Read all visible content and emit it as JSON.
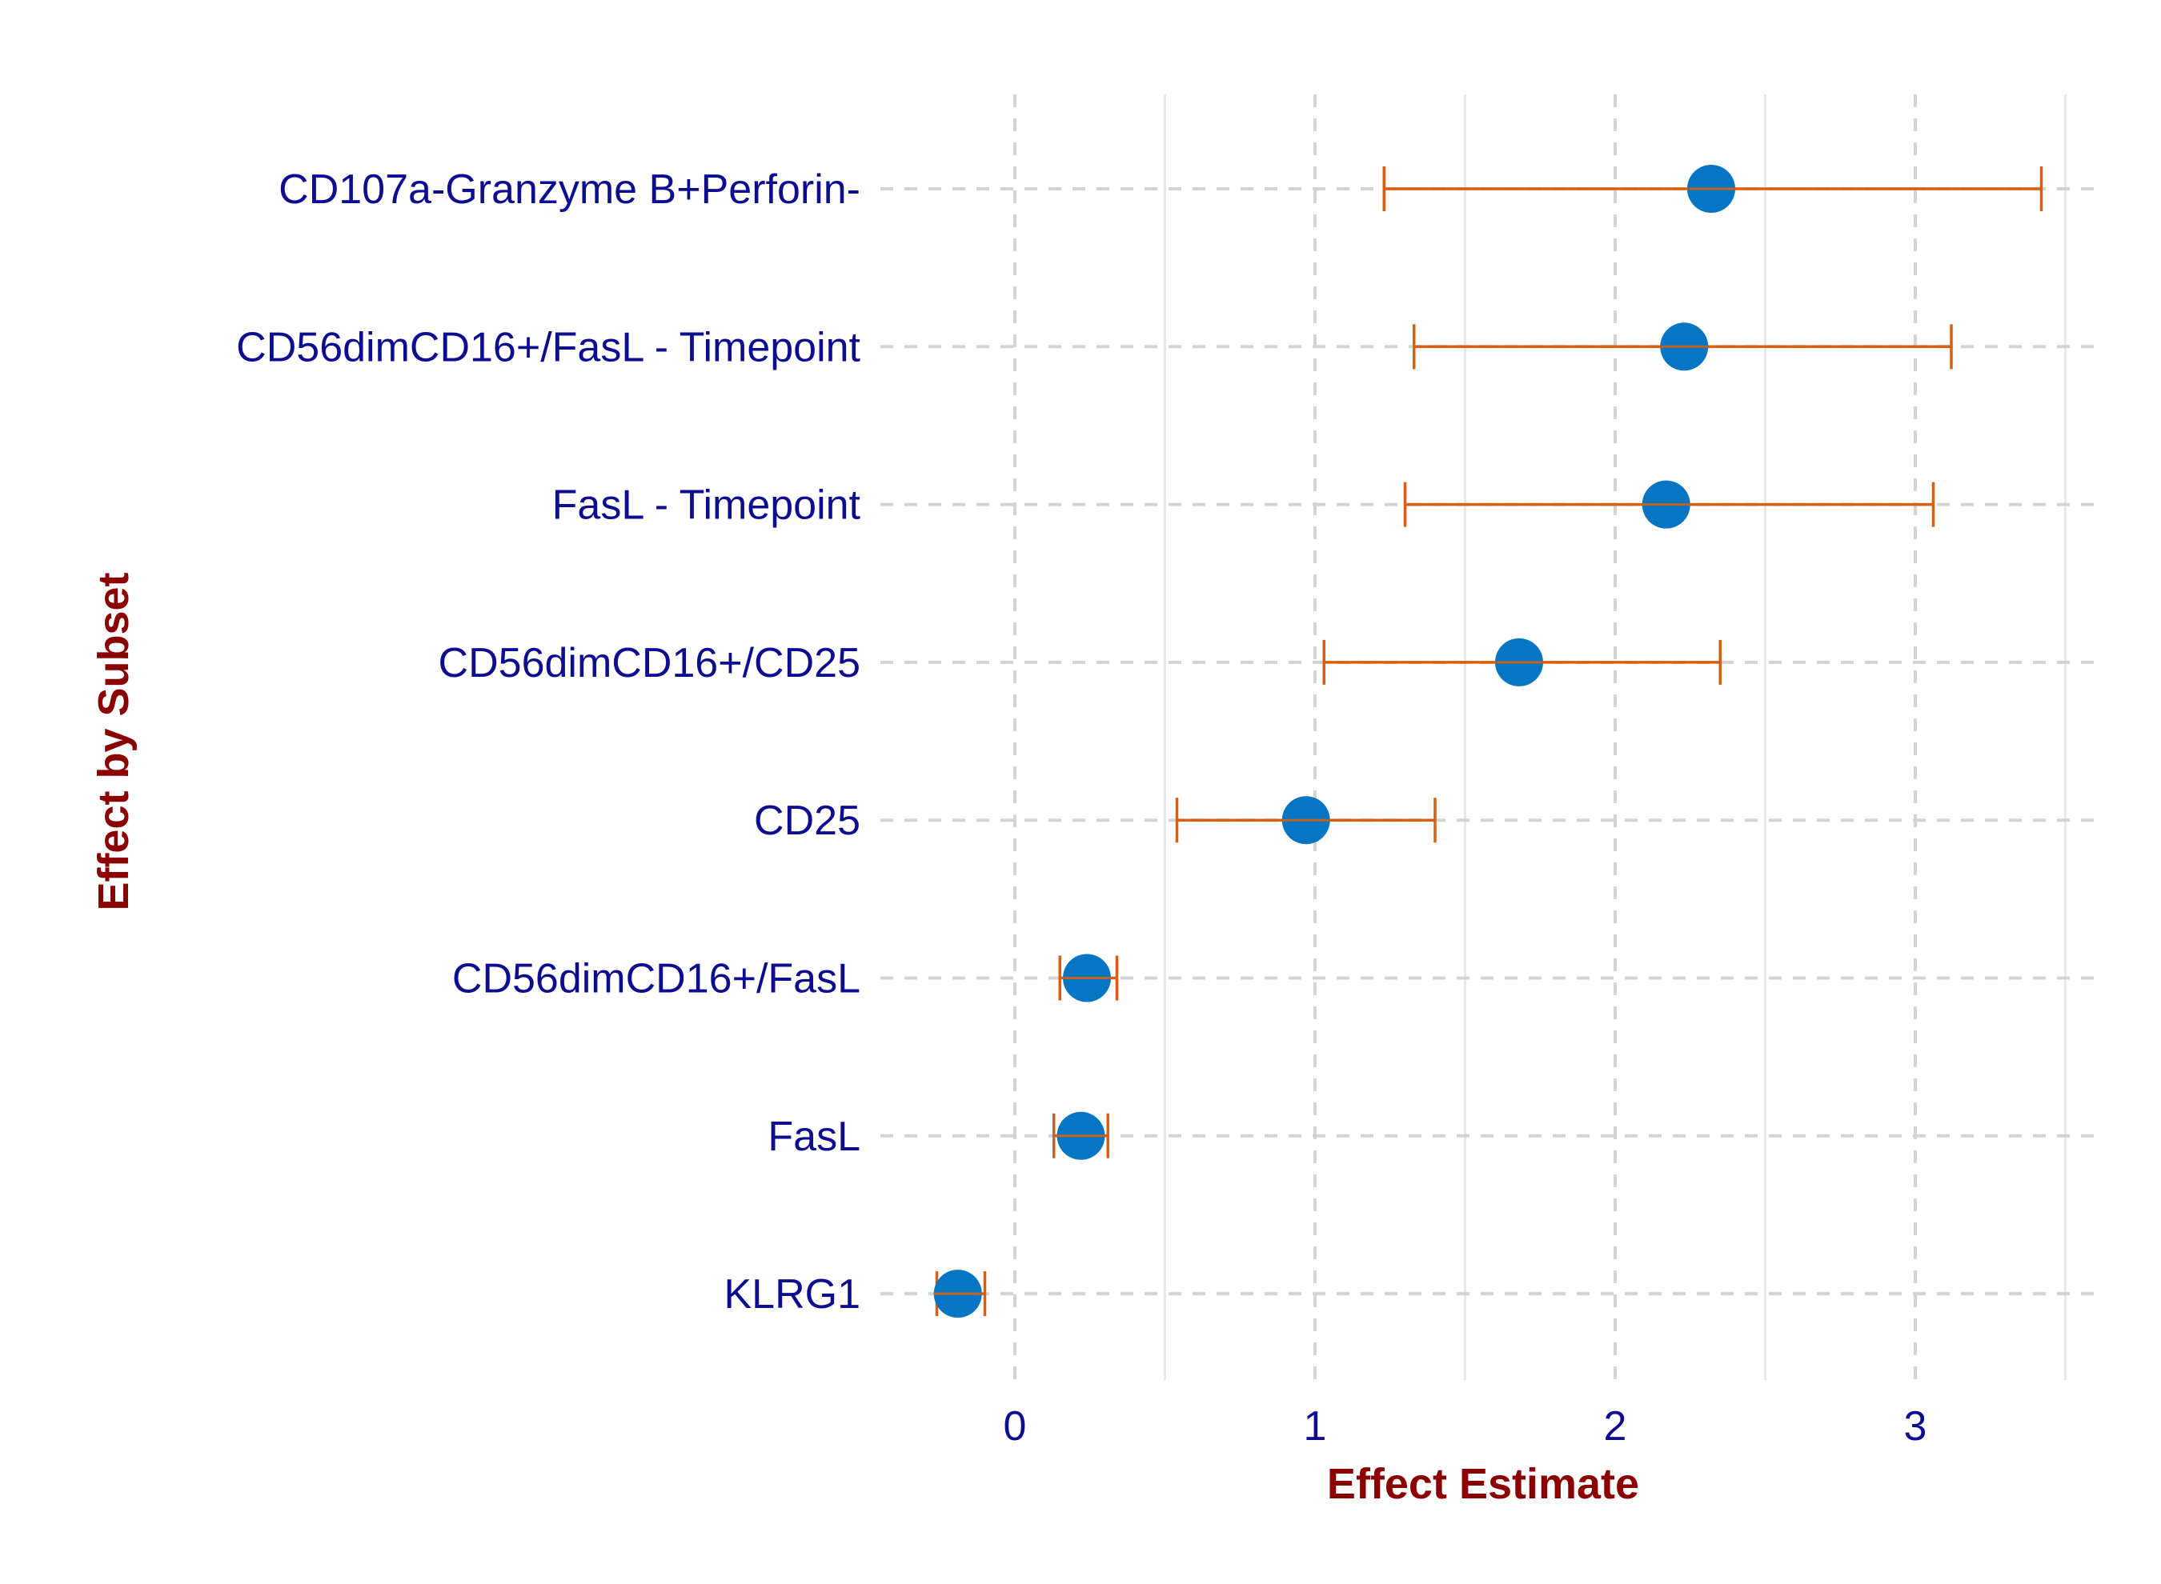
{
  "chart_data": {
    "type": "scatter",
    "title": "",
    "xlabel": "Effect Estimate",
    "ylabel": "Effect by Subset",
    "xlim": [
      -0.42,
      3.58
    ],
    "x_ticks": [
      0,
      1,
      2,
      3
    ],
    "x_minor_ticks": [
      0.5,
      1.5,
      2.5,
      3.5
    ],
    "grid": true,
    "legend": "none",
    "categories": [
      "CD107a-Granzyme B+Perforin-",
      "CD56dimCD16+/FasL - Timepoint",
      "FasL - Timepoint",
      "CD56dimCD16+/CD25",
      "CD25",
      "CD56dimCD16+/FasL",
      "FasL",
      "KLRG1"
    ],
    "estimates": [
      2.32,
      2.23,
      2.17,
      1.68,
      0.97,
      0.24,
      0.22,
      -0.19
    ],
    "ci_lower": [
      1.23,
      1.33,
      1.3,
      1.03,
      0.54,
      0.15,
      0.13,
      -0.26
    ],
    "ci_upper": [
      3.42,
      3.12,
      3.06,
      2.35,
      1.4,
      0.34,
      0.31,
      -0.1
    ],
    "point_color": "#0675c4",
    "errorbar_color": "#d95f0e",
    "label_color": "#0d0d8f",
    "title_color": "#8b0000",
    "grid_dashed_color": "#d4d4d4",
    "grid_minor_color": "#e8e8e8"
  }
}
